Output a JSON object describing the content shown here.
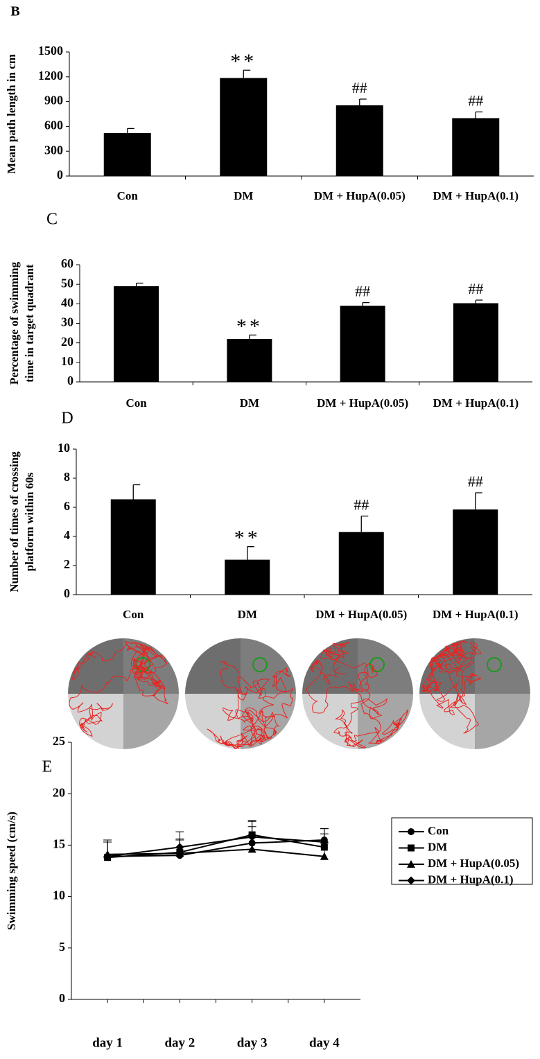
{
  "chart_data": [
    {
      "type": "bar",
      "panel_label": "B",
      "y_label": [
        "Mean path length in cm"
      ],
      "categories": [
        "Con",
        "DM",
        "DM + HupA(0.05)",
        "DM + HupA(0.1)"
      ],
      "values": [
        520,
        1185,
        855,
        700
      ],
      "errors": [
        55,
        95,
        75,
        75
      ],
      "annotations": [
        null,
        "**",
        "##",
        "##"
      ],
      "color": "#000000",
      "ylim": [
        0,
        1500
      ],
      "yticks": [
        0,
        300,
        600,
        900,
        1200,
        1500
      ]
    },
    {
      "type": "bar",
      "panel_label": "C",
      "y_label": [
        "Percentage of swimming",
        "time in target quadrant"
      ],
      "categories": [
        "Con",
        "DM",
        "DM + HupA(0.05)",
        "DM + HupA(0.1)"
      ],
      "values": [
        49,
        22,
        39,
        40.3
      ],
      "errors": [
        1.6,
        2,
        1.6,
        1.6
      ],
      "annotations": [
        null,
        "**",
        "##",
        "##"
      ],
      "color": "#000000",
      "ylim": [
        0,
        60
      ],
      "yticks": [
        0,
        10,
        20,
        30,
        40,
        50,
        60
      ]
    },
    {
      "type": "bar",
      "panel_label": "D",
      "y_label": [
        "Number of times of crossing",
        "platform within 60s"
      ],
      "categories": [
        "Con",
        "DM",
        "DM + HupA(0.05)",
        "DM + HupA(0.1)"
      ],
      "values": [
        6.55,
        2.4,
        4.3,
        5.85
      ],
      "errors": [
        1,
        0.9,
        1.1,
        1.15
      ],
      "annotations": [
        null,
        "**",
        "##",
        "##"
      ],
      "color": "#000000",
      "ylim": [
        0,
        10
      ],
      "yticks": [
        0,
        2,
        4,
        6,
        8,
        10
      ]
    },
    {
      "type": "line",
      "panel_label": "E",
      "y_label": [
        "Swimming speed (cm/s)"
      ],
      "categories": [
        "day 1",
        "day 2",
        "day 3",
        "day 4"
      ],
      "series": [
        {
          "name": "Con",
          "color": "#000000",
          "marker": "circle",
          "values": [
            13.9,
            14.0,
            15.2,
            15.5
          ],
          "errors": [
            1.4,
            1.5,
            1.6,
            1.1
          ]
        },
        {
          "name": "DM",
          "color": "#000000",
          "marker": "square",
          "values": [
            13.8,
            14.3,
            16.0,
            14.8
          ],
          "errors": [
            1.5,
            1.3,
            1.3,
            1.3
          ]
        },
        {
          "name": "DM + HupA(0.05)",
          "color": "#000000",
          "marker": "triangle",
          "values": [
            14.1,
            14.2,
            14.6,
            13.9
          ],
          "errors": [
            1.2,
            1.3,
            1.4,
            1.3
          ]
        },
        {
          "name": "DM + HupA(0.1)",
          "color": "#000000",
          "marker": "diamond",
          "values": [
            13.9,
            14.8,
            15.8,
            15.3
          ],
          "errors": [
            1.6,
            1.5,
            1.6,
            1.3
          ]
        }
      ],
      "ylim": [
        0,
        25
      ],
      "yticks": [
        0,
        5,
        10,
        15,
        20,
        25
      ],
      "legend": "right"
    }
  ]
}
